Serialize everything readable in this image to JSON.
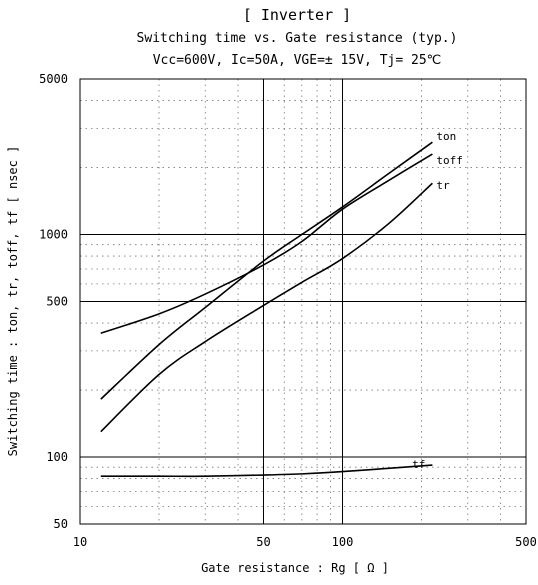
{
  "chart_data": {
    "type": "line",
    "title": "[ Inverter ]",
    "subtitle": "Switching time  vs.  Gate resistance  (typ.)",
    "conditions": "Vcc=600V, Ic=50A, VGE=± 15V, Tj= 25℃",
    "xlabel": "Gate resistance  :  Rg  [ Ω  ]",
    "ylabel": "Switching time  :  ton, tr, toff, tf  [ nsec ]",
    "xscale": "log",
    "yscale": "log",
    "xlim": [
      10,
      500
    ],
    "ylim": [
      50,
      5000
    ],
    "x_ticks": [
      {
        "value": 10,
        "label": "10"
      },
      {
        "value": 50,
        "label": "50"
      },
      {
        "value": 100,
        "label": "100"
      },
      {
        "value": 500,
        "label": "500"
      }
    ],
    "y_ticks": [
      {
        "value": 50,
        "label": "50"
      },
      {
        "value": 100,
        "label": "100"
      },
      {
        "value": 500,
        "label": "500"
      },
      {
        "value": 1000,
        "label": "1000"
      },
      {
        "value": 5000,
        "label": "5000"
      }
    ],
    "grid": true,
    "series": [
      {
        "name": "ton",
        "x": [
          12,
          20,
          30,
          50,
          70,
          100,
          150,
          220
        ],
        "y": [
          182,
          320,
          470,
          760,
          1000,
          1330,
          1880,
          2600
        ]
      },
      {
        "name": "toff",
        "x": [
          12,
          20,
          30,
          50,
          70,
          100,
          150,
          220
        ],
        "y": [
          360,
          440,
          540,
          730,
          930,
          1300,
          1750,
          2300
        ]
      },
      {
        "name": "tr",
        "x": [
          12,
          20,
          30,
          50,
          70,
          100,
          150,
          220
        ],
        "y": [
          130,
          235,
          330,
          480,
          610,
          780,
          1120,
          1700
        ]
      },
      {
        "name": "tf",
        "x": [
          12,
          20,
          30,
          50,
          70,
          100,
          150,
          220
        ],
        "y": [
          82,
          82,
          82,
          83,
          84,
          86,
          89,
          92
        ]
      }
    ]
  }
}
